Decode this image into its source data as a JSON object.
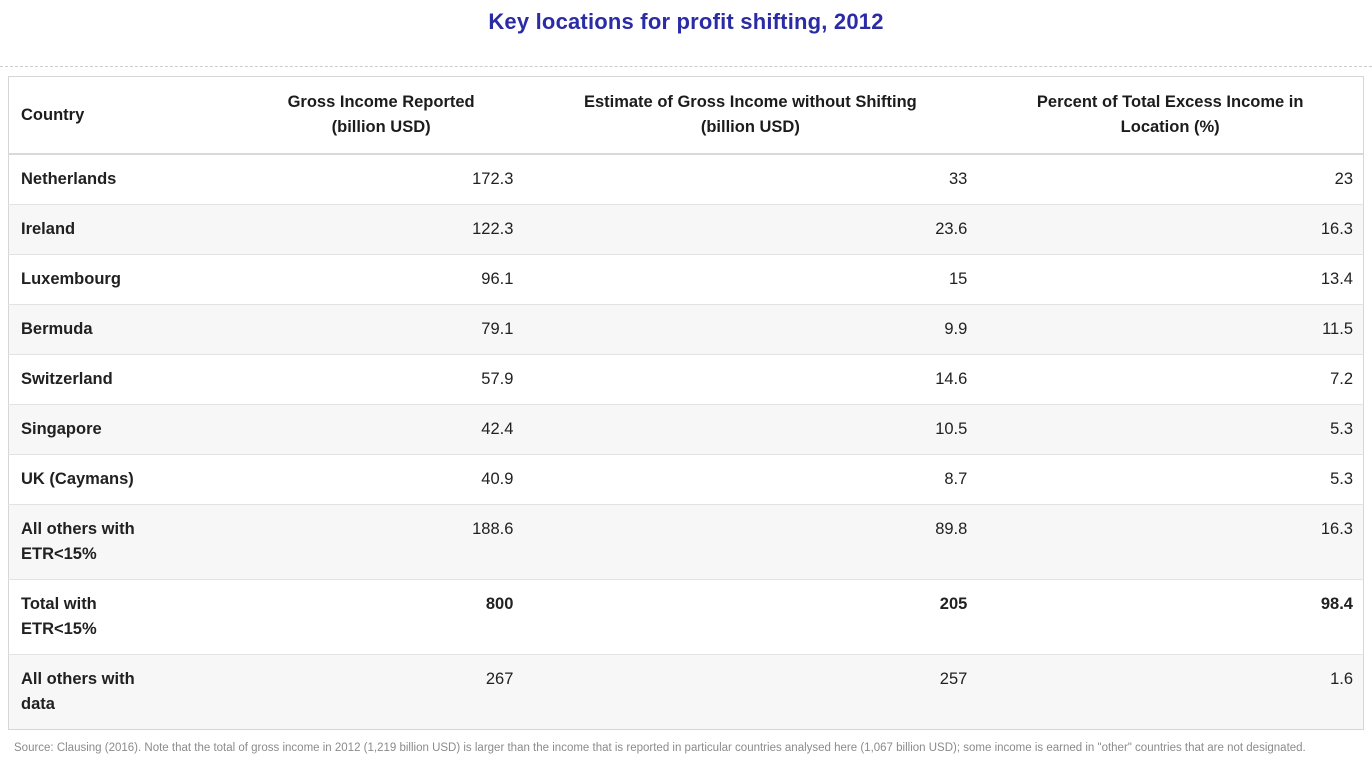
{
  "page": {
    "title": "Key locations for profit shifting, 2012",
    "source_note": "Source: Clausing (2016). Note that the total of gross income in 2012 (1,219 billion USD) is larger than the income that is reported in particular countries analysed here (1,067 billion USD); some income is earned in \"other\" countries that are not designated."
  },
  "table": {
    "columns": [
      {
        "label": "Country",
        "align": "left"
      },
      {
        "label": "Gross Income Reported\n(billion USD)",
        "align": "center"
      },
      {
        "label": "Estimate of Gross Income without Shifting\n(billion USD)",
        "align": "center"
      },
      {
        "label": "Percent of Total Excess Income in\nLocation (%)",
        "align": "center"
      }
    ],
    "rows": [
      {
        "country": "Netherlands",
        "values": [
          "172.3",
          "33",
          "23"
        ],
        "striped": false,
        "bold_values": false
      },
      {
        "country": "Ireland",
        "values": [
          "122.3",
          "23.6",
          "16.3"
        ],
        "striped": true,
        "bold_values": false
      },
      {
        "country": "Luxembourg",
        "values": [
          "96.1",
          "15",
          "13.4"
        ],
        "striped": false,
        "bold_values": false
      },
      {
        "country": "Bermuda",
        "values": [
          "79.1",
          "9.9",
          "11.5"
        ],
        "striped": true,
        "bold_values": false
      },
      {
        "country": "Switzerland",
        "values": [
          "57.9",
          "14.6",
          "7.2"
        ],
        "striped": false,
        "bold_values": false
      },
      {
        "country": "Singapore",
        "values": [
          "42.4",
          "10.5",
          "5.3"
        ],
        "striped": true,
        "bold_values": false
      },
      {
        "country": "UK (Caymans)",
        "values": [
          "40.9",
          "8.7",
          "5.3"
        ],
        "striped": false,
        "bold_values": false
      },
      {
        "country": "All others with\nETR<15%",
        "values": [
          "188.6",
          "89.8",
          "16.3"
        ],
        "striped": true,
        "bold_values": false
      },
      {
        "country": "Total with\nETR<15%",
        "values": [
          "800",
          "205",
          "98.4"
        ],
        "striped": false,
        "bold_values": true
      },
      {
        "country": "All others with\ndata",
        "values": [
          "267",
          "257",
          "1.6"
        ],
        "striped": true,
        "bold_values": false
      }
    ]
  },
  "colors": {
    "title_color": "#2b2ba6",
    "text_color": "#212121",
    "stripe_color": "#f7f7f7",
    "border_color": "#d6d6d6",
    "divider_color": "#e3e3e3",
    "header_rule_color": "#d9d9d9",
    "dashed_rule_color": "#cccccc",
    "source_color": "#8b8b8b"
  },
  "chart_data": {
    "type": "table",
    "title": "Key locations for profit shifting, 2012",
    "columns": [
      "Country",
      "Gross Income Reported (billion USD)",
      "Estimate of Gross Income without Shifting (billion USD)",
      "Percent of Total Excess Income in Location (%)"
    ],
    "rows": [
      [
        "Netherlands",
        172.3,
        33,
        23
      ],
      [
        "Ireland",
        122.3,
        23.6,
        16.3
      ],
      [
        "Luxembourg",
        96.1,
        15,
        13.4
      ],
      [
        "Bermuda",
        79.1,
        9.9,
        11.5
      ],
      [
        "Switzerland",
        57.9,
        14.6,
        7.2
      ],
      [
        "Singapore",
        42.4,
        10.5,
        5.3
      ],
      [
        "UK (Caymans)",
        40.9,
        8.7,
        5.3
      ],
      [
        "All others with ETR<15%",
        188.6,
        89.8,
        16.3
      ],
      [
        "Total with ETR<15%",
        800,
        205,
        98.4
      ],
      [
        "All others with data",
        267,
        257,
        1.6
      ]
    ],
    "emphasized_row": "Total with ETR<15%",
    "source": "Source: Clausing (2016). Note that the total of gross income in 2012 (1,219 billion USD) is larger than the income that is reported in particular countries analysed here (1,067 billion USD); some income is earned in \"other\" countries that are not designated.",
    "legend": "none",
    "grid": "horizontal row dividers only"
  }
}
